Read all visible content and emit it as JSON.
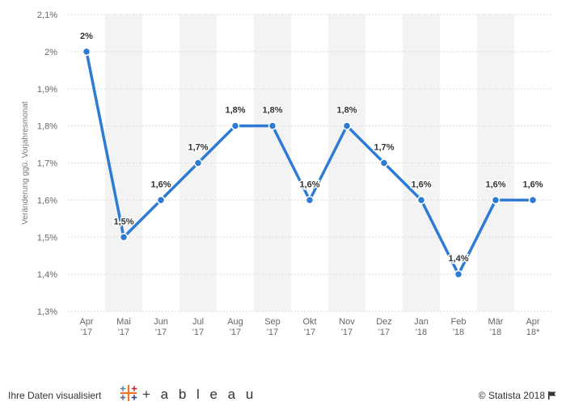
{
  "chart_data": {
    "type": "line",
    "categories": [
      [
        "Apr",
        "'17"
      ],
      [
        "Mai",
        "'17"
      ],
      [
        "Jun",
        "'17"
      ],
      [
        "Jul",
        "'17"
      ],
      [
        "Aug",
        "'17"
      ],
      [
        "Sep",
        "'17"
      ],
      [
        "Okt",
        "'17"
      ],
      [
        "Nov",
        "'17"
      ],
      [
        "Dez",
        "'17"
      ],
      [
        "Jan",
        "'18"
      ],
      [
        "Feb",
        "'18"
      ],
      [
        "Mär",
        "'18"
      ],
      [
        "Apr",
        "18*"
      ]
    ],
    "series": [
      {
        "values": [
          2.0,
          1.5,
          1.6,
          1.7,
          1.8,
          1.8,
          1.6,
          1.8,
          1.7,
          1.6,
          1.4,
          1.6,
          1.6
        ]
      }
    ],
    "data_labels": [
      "2%",
      "1,5%",
      "1,6%",
      "1,7%",
      "1,8%",
      "1,8%",
      "1,6%",
      "1,8%",
      "1,7%",
      "1,6%",
      "1,4%",
      "1,6%",
      "1,6%"
    ],
    "ylabel": "Veränderung ggü. Vorjahresmonat",
    "yticks": [
      1.3,
      1.4,
      1.5,
      1.6,
      1.7,
      1.8,
      1.9,
      2.0,
      2.1
    ],
    "ytick_labels": [
      "1,3%",
      "1,4%",
      "1,5%",
      "1,6%",
      "1,7%",
      "1,8%",
      "1,9%",
      "2%",
      "2,1%"
    ],
    "ylim": [
      1.3,
      2.1
    ],
    "grid": true,
    "line_color": "#2e7bd6",
    "band_color": "#f3f3f3"
  },
  "footer": {
    "visualized_text": "Ihre Daten visualisiert",
    "tableau_word": "+ a b l e a u",
    "statista_text": "© Statista 2018",
    "flag_icon": "flag-icon"
  }
}
